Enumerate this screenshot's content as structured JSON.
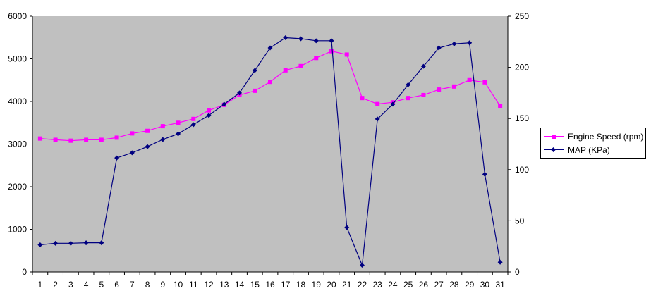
{
  "chart_data": {
    "type": "line",
    "title": "",
    "xlabel": "",
    "ylabel": "",
    "x": [
      1,
      2,
      3,
      4,
      5,
      6,
      7,
      8,
      9,
      10,
      11,
      12,
      13,
      14,
      15,
      16,
      17,
      18,
      19,
      20,
      21,
      22,
      23,
      24,
      25,
      26,
      27,
      28,
      29,
      30,
      31
    ],
    "ylim_left": [
      0,
      6000
    ],
    "yticks_left": [
      0,
      1000,
      2000,
      3000,
      4000,
      5000,
      6000
    ],
    "ylim_right": [
      0,
      250
    ],
    "yticks_right": [
      0,
      50,
      100,
      150,
      200,
      250
    ],
    "grid": false,
    "plot_background": "#c0c0c0",
    "legend_position": "right",
    "series": [
      {
        "name": "Engine Speed (rpm)",
        "axis": "left",
        "color": "#ff00ff",
        "marker": "square",
        "values": [
          3130,
          3100,
          3080,
          3100,
          3100,
          3150,
          3250,
          3310,
          3420,
          3500,
          3590,
          3790,
          3920,
          4150,
          4250,
          4460,
          4730,
          4830,
          5020,
          5180,
          5100,
          4080,
          3940,
          3980,
          4080,
          4150,
          4280,
          4350,
          4500,
          4450,
          3890
        ]
      },
      {
        "name": "MAP (KPa)",
        "axis": "right",
        "color": "#000080",
        "marker": "diamond",
        "values": [
          26.5,
          28,
          28,
          28.5,
          28.5,
          111.5,
          116.5,
          122.5,
          129.5,
          135,
          144,
          153,
          164,
          175,
          197,
          219,
          229,
          228,
          226,
          226,
          43.5,
          6.5,
          149.5,
          164,
          183,
          201,
          219,
          223,
          224,
          95.5,
          9.5
        ]
      }
    ]
  }
}
